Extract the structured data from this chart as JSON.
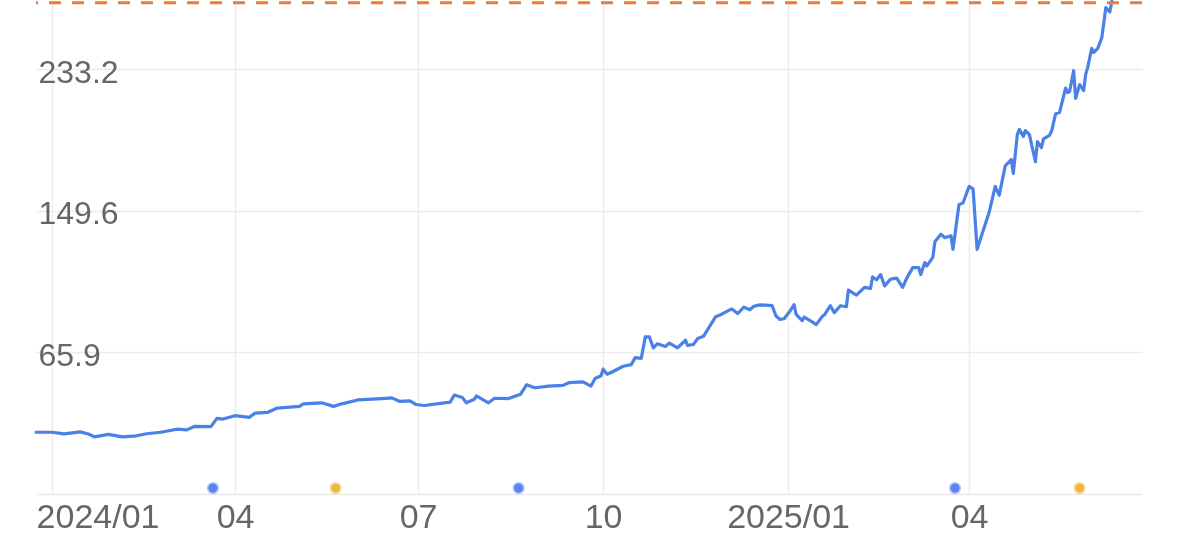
{
  "chart_data": {
    "type": "line",
    "series": [
      {
        "color": "#4a80e8",
        "x": [
          "2023-12-24",
          "2024-01-01",
          "2024-01-07",
          "2024-01-15",
          "2024-01-19",
          "2024-01-22",
          "2024-01-29",
          "2024-02-05",
          "2024-02-12",
          "2024-02-17",
          "2024-02-24",
          "2024-03-03",
          "2024-03-08",
          "2024-03-12",
          "2024-03-20",
          "2024-03-23",
          "2024-03-26",
          "2024-04-01",
          "2024-04-08",
          "2024-04-11",
          "2024-04-17",
          "2024-04-22",
          "2024-05-03",
          "2024-05-05",
          "2024-05-14",
          "2024-05-20",
          "2024-05-24",
          "2024-06-01",
          "2024-06-13",
          "2024-06-18",
          "2024-06-22",
          "2024-06-27",
          "2024-06-30",
          "2024-07-04",
          "2024-07-17",
          "2024-07-19",
          "2024-07-23",
          "2024-07-25",
          "2024-07-29",
          "2024-07-30",
          "2024-08-05",
          "2024-08-08",
          "2024-08-15",
          "2024-08-21",
          "2024-08-24",
          "2024-08-28",
          "2024-09-04",
          "2024-09-11",
          "2024-09-14",
          "2024-09-21",
          "2024-09-25",
          "2024-09-27",
          "2024-09-30",
          "2024-10-01",
          "2024-10-03",
          "2024-10-06",
          "2024-10-11",
          "2024-10-15",
          "2024-10-17",
          "2024-10-20",
          "2024-10-22",
          "2024-10-24",
          "2024-10-26",
          "2024-10-28",
          "2024-11-01",
          "2024-11-03",
          "2024-11-07",
          "2024-11-11",
          "2024-11-12",
          "2024-11-15",
          "2024-11-17",
          "2024-11-20",
          "2024-11-26",
          "2024-11-29",
          "2024-12-04",
          "2024-12-07",
          "2024-12-10",
          "2024-12-13",
          "2024-12-15",
          "2024-12-18",
          "2024-12-24",
          "2024-12-26",
          "2024-12-28",
          "2024-12-30",
          "2025-01-02",
          "2025-01-04",
          "2025-01-05",
          "2025-01-08",
          "2025-01-09",
          "2025-01-13",
          "2025-01-15",
          "2025-01-18",
          "2025-01-19",
          "2025-01-22",
          "2025-01-24",
          "2025-01-27",
          "2025-01-30",
          "2025-01-31",
          "2025-02-04",
          "2025-02-08",
          "2025-02-11",
          "2025-02-12",
          "2025-02-14",
          "2025-02-16",
          "2025-02-18",
          "2025-02-21",
          "2025-02-24",
          "2025-02-27",
          "2025-03-01",
          "2025-03-04",
          "2025-03-07",
          "2025-03-08",
          "2025-03-10",
          "2025-03-11",
          "2025-03-14",
          "2025-03-15",
          "2025-03-18",
          "2025-03-20",
          "2025-03-23",
          "2025-03-24",
          "2025-03-27",
          "2025-03-29",
          "2025-04-01",
          "2025-04-03",
          "2025-04-05",
          "2025-04-11",
          "2025-04-14",
          "2025-04-16",
          "2025-04-19",
          "2025-04-22",
          "2025-04-23",
          "2025-04-25",
          "2025-04-26",
          "2025-04-28",
          "2025-04-29",
          "2025-05-01",
          "2025-05-04",
          "2025-05-05",
          "2025-05-07",
          "2025-05-08",
          "2025-05-11",
          "2025-05-12",
          "2025-05-14",
          "2025-05-16",
          "2025-05-19",
          "2025-05-20",
          "2025-05-21",
          "2025-05-23",
          "2025-05-24",
          "2025-05-26",
          "2025-05-28",
          "2025-05-29",
          "2025-05-30",
          "2025-06-01",
          "2025-06-02",
          "2025-06-04",
          "2025-06-06",
          "2025-06-08",
          "2025-06-10",
          "2025-06-11"
        ],
        "values": [
          18.7,
          18.7,
          17.7,
          18.9,
          17.7,
          16.0,
          17.4,
          16.0,
          16.6,
          17.8,
          18.7,
          20.5,
          20.1,
          22.2,
          22.0,
          26.9,
          26.5,
          28.5,
          27.5,
          30.0,
          30.4,
          33.0,
          34.0,
          35.5,
          36.1,
          34.0,
          35.5,
          37.8,
          38.6,
          39.0,
          36.9,
          37.2,
          35.1,
          34.5,
          36.5,
          40.7,
          39.2,
          36.1,
          38.2,
          40.2,
          36.1,
          38.8,
          38.6,
          41.2,
          46.8,
          45.0,
          46.0,
          46.4,
          48.0,
          48.5,
          46.0,
          50.5,
          52.1,
          56.0,
          53.0,
          54.6,
          57.7,
          58.7,
          62.8,
          62.4,
          75.1,
          75.1,
          68.6,
          71.0,
          69.4,
          71.4,
          68.6,
          73.1,
          70.0,
          70.6,
          74.1,
          75.5,
          87.0,
          88.5,
          91.6,
          88.9,
          92.6,
          91.1,
          93.2,
          94.0,
          93.6,
          87.4,
          85.4,
          85.8,
          90.4,
          94.1,
          88.4,
          84.7,
          86.8,
          83.9,
          82.3,
          87.2,
          88.0,
          93.5,
          89.4,
          93.5,
          92.9,
          102.7,
          99.7,
          104.3,
          103.7,
          110.5,
          108.8,
          111.9,
          105.2,
          109.2,
          109.8,
          104.3,
          109.8,
          116.0,
          116.0,
          111.9,
          119.0,
          117.0,
          122.1,
          131.3,
          135.8,
          133.7,
          134.8,
          126.8,
          153.3,
          154.2,
          164.0,
          162.6,
          126.8,
          148.7,
          164.0,
          158.8,
          176.2,
          179.9,
          171.7,
          194.6,
          197.7,
          193.6,
          197.0,
          194.6,
          178.6,
          190.5,
          186.9,
          192.1,
          194.2,
          196.6,
          206.8,
          207.8,
          222.1,
          219.5,
          220.1,
          232.4,
          216.1,
          224.2,
          220.7,
          230.3,
          234.4,
          245.6,
          243.2,
          245.6,
          251.8,
          269.7,
          267.1,
          273.5
        ]
      },
      {
        "type": "scatter",
        "color": "#5d83f0",
        "x": [
          "2024-03-21",
          "2024-08-20",
          "2025-03-25"
        ],
        "values": [
          -14.3,
          -14.3,
          -14.3
        ]
      },
      {
        "type": "scatter",
        "color": "#f0b93e",
        "x": [
          "2024-05-21",
          "2025-05-26"
        ],
        "values": [
          -14.3,
          -14.3
        ]
      }
    ],
    "xlim": [
      "2023-12-24",
      "2025-06-26"
    ],
    "xticks": [
      {
        "value": "2024-01",
        "label": "2024/01"
      },
      {
        "value": "2024-04",
        "label": "04"
      },
      {
        "value": "2024-07",
        "label": "07"
      },
      {
        "value": "2024-10",
        "label": "10"
      },
      {
        "value": "2025-01",
        "label": "2025/01"
      },
      {
        "value": "2025-04",
        "label": "04"
      }
    ],
    "ylim": [
      -17.8,
      274.2
    ],
    "yticks": [
      65.9,
      149.6,
      233.2
    ],
    "grid": true,
    "ref_lines": [
      {
        "axis": "y",
        "value": 272.6,
        "color": "#ee7b30",
        "line_style": "dashed"
      }
    ]
  }
}
